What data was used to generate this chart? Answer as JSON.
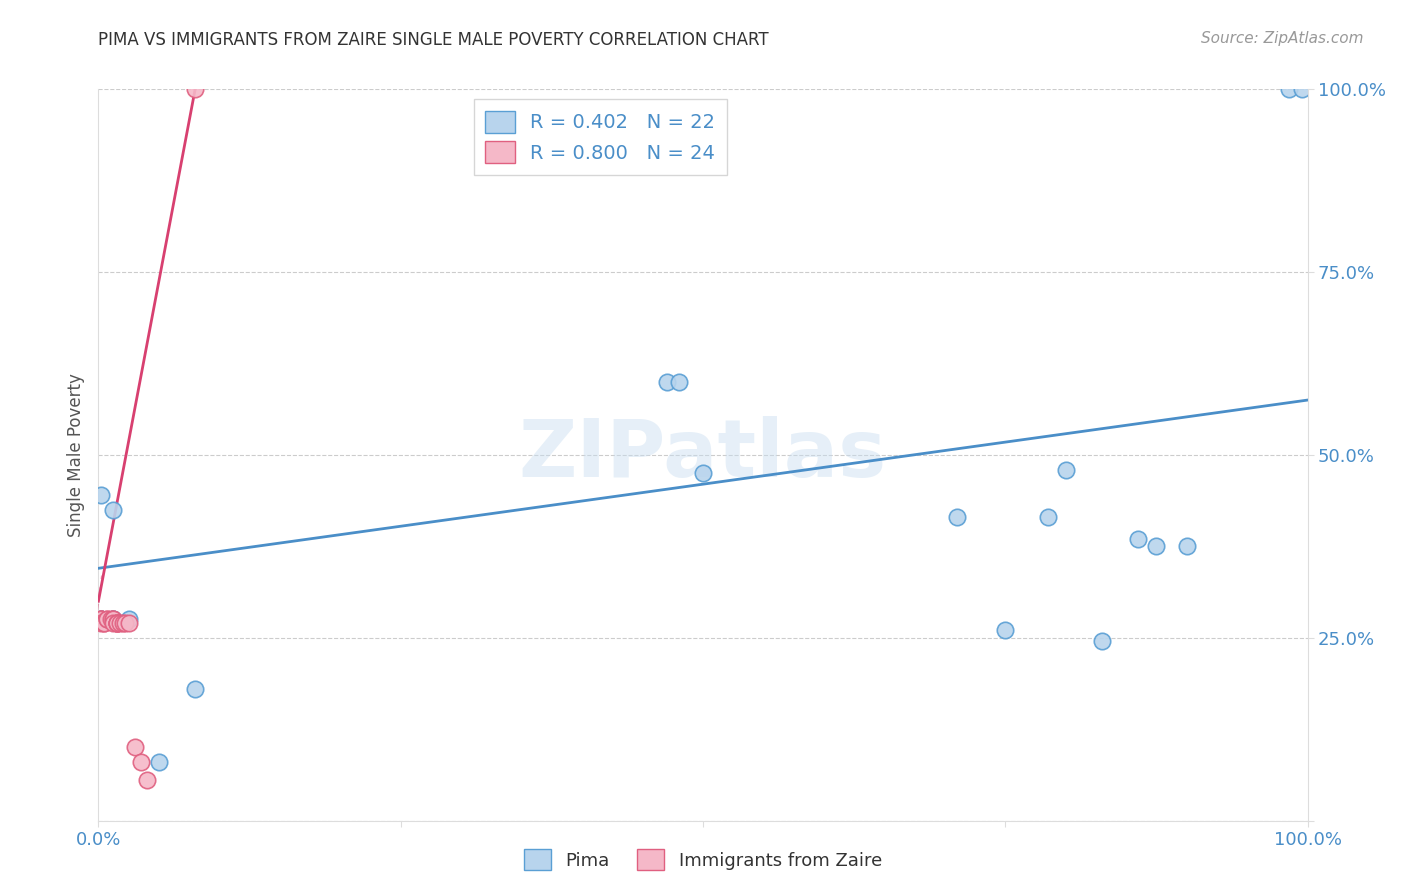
{
  "title": "PIMA VS IMMIGRANTS FROM ZAIRE SINGLE MALE POVERTY CORRELATION CHART",
  "source": "Source: ZipAtlas.com",
  "ylabel": "Single Male Poverty",
  "xlim": [
    0,
    1
  ],
  "ylim": [
    0,
    1
  ],
  "x_ticks": [
    0.0,
    0.25,
    0.5,
    0.75,
    1.0
  ],
  "x_tick_labels": [
    "0.0%",
    "",
    "",
    "",
    "100.0%"
  ],
  "y_ticks": [
    0.0,
    0.25,
    0.5,
    0.75,
    1.0
  ],
  "y_tick_labels_right": [
    "",
    "25.0%",
    "50.0%",
    "75.0%",
    "100.0%"
  ],
  "legend_label_pima": "Pima",
  "legend_label_zaire": "Immigrants from Zaire",
  "pima_fill_color": "#b8d4ed",
  "pima_edge_color": "#5a9fd4",
  "zaire_fill_color": "#f5b8c8",
  "zaire_edge_color": "#e06080",
  "pima_line_color": "#4a8ec8",
  "zaire_line_color": "#d84070",
  "background_color": "#ffffff",
  "watermark": "ZIPatlas",
  "pima_scatter": [
    [
      0.002,
      0.445
    ],
    [
      0.012,
      0.425
    ],
    [
      0.012,
      0.275
    ],
    [
      0.012,
      0.275
    ],
    [
      0.002,
      0.275
    ],
    [
      0.002,
      0.275
    ],
    [
      0.025,
      0.275
    ],
    [
      0.08,
      0.18
    ],
    [
      0.05,
      0.08
    ],
    [
      0.47,
      0.6
    ],
    [
      0.5,
      0.475
    ],
    [
      0.48,
      0.6
    ],
    [
      0.71,
      0.415
    ],
    [
      0.785,
      0.415
    ],
    [
      0.8,
      0.48
    ],
    [
      0.83,
      0.245
    ],
    [
      0.86,
      0.385
    ],
    [
      0.875,
      0.375
    ],
    [
      0.9,
      0.375
    ],
    [
      0.75,
      0.26
    ],
    [
      0.985,
      1.0
    ],
    [
      0.995,
      1.0
    ]
  ],
  "zaire_scatter": [
    [
      0.002,
      0.275
    ],
    [
      0.002,
      0.275
    ],
    [
      0.002,
      0.275
    ],
    [
      0.002,
      0.27
    ],
    [
      0.005,
      0.27
    ],
    [
      0.005,
      0.27
    ],
    [
      0.007,
      0.275
    ],
    [
      0.007,
      0.275
    ],
    [
      0.01,
      0.275
    ],
    [
      0.012,
      0.275
    ],
    [
      0.012,
      0.275
    ],
    [
      0.012,
      0.27
    ],
    [
      0.015,
      0.27
    ],
    [
      0.015,
      0.27
    ],
    [
      0.015,
      0.27
    ],
    [
      0.015,
      0.27
    ],
    [
      0.018,
      0.27
    ],
    [
      0.02,
      0.27
    ],
    [
      0.022,
      0.27
    ],
    [
      0.025,
      0.27
    ],
    [
      0.03,
      0.1
    ],
    [
      0.035,
      0.08
    ],
    [
      0.04,
      0.055
    ],
    [
      0.08,
      1.0
    ]
  ],
  "pima_line": {
    "x0": 0.0,
    "y0": 0.345,
    "x1": 1.0,
    "y1": 0.575
  },
  "zaire_line_solid": {
    "x0": 0.0,
    "y0": 0.3,
    "x1": 0.08,
    "y1": 1.0
  },
  "zaire_line_dash": {
    "x0": -0.005,
    "y0": 0.24,
    "x1": 0.003,
    "y1": 0.335
  }
}
